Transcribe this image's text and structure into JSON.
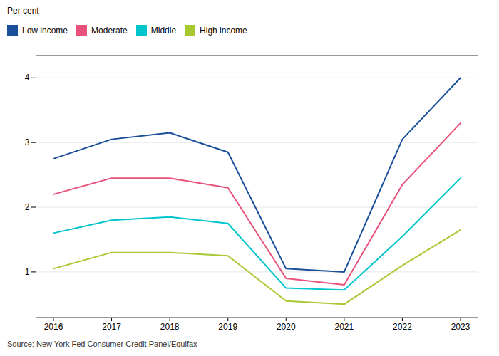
{
  "chart_data": {
    "type": "line",
    "y_label": "Per cent",
    "caption": "Source: New York Fed Consumer Credit Panel/Equifax",
    "x": [
      2016,
      2017,
      2018,
      2019,
      2020,
      2021,
      2022,
      2023
    ],
    "series": [
      {
        "name": "Low income",
        "color": "#1A4F9C",
        "values": [
          2.75,
          3.05,
          3.15,
          2.85,
          1.05,
          1.0,
          3.05,
          4.0
        ]
      },
      {
        "name": "Moderate",
        "color": "#E8527A",
        "values": [
          2.2,
          2.45,
          2.45,
          2.3,
          0.9,
          0.8,
          2.35,
          3.3
        ]
      },
      {
        "name": "Middle",
        "color": "#00C5CD",
        "values": [
          1.6,
          1.8,
          1.85,
          1.75,
          0.75,
          0.72,
          1.55,
          2.45
        ]
      },
      {
        "name": "High income",
        "color": "#A8C832",
        "values": [
          1.05,
          1.3,
          1.3,
          1.25,
          0.55,
          0.5,
          1.1,
          1.65
        ]
      }
    ],
    "xlim": [
      2015.7,
      2023.3
    ],
    "xticks": [
      2016,
      2017,
      2018,
      2019,
      2020,
      2021,
      2022,
      2023
    ],
    "ylim": [
      0.3,
      4.35
    ],
    "yticks": [
      1,
      2,
      3,
      4
    ],
    "grid": "y",
    "legend": "upper left"
  }
}
